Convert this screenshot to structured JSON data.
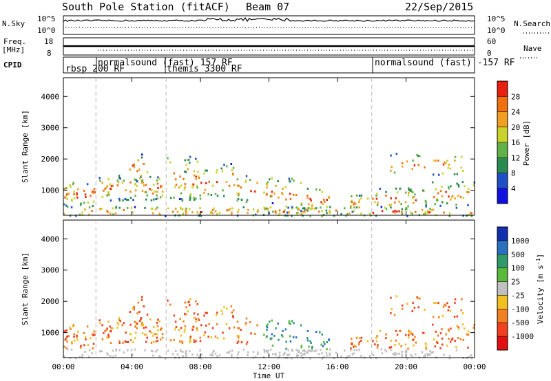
{
  "header": {
    "station": "South Pole Station (fitACF)",
    "beam": "Beam 07",
    "date": "22/Sep/2015"
  },
  "panel_labels": {
    "n_sky": "N.Sky",
    "n_search": "N.Search",
    "freq_line1": "Freq.",
    "freq_line2": "[MHz]",
    "nave": "Nave",
    "cpid": "CPID"
  },
  "chart_data": [
    {
      "type": "line",
      "name": "noise",
      "y_ticks_left": [
        "10^5",
        "10^0"
      ],
      "y_ticks_right": [
        "10^5",
        "10^0"
      ],
      "scale": "log"
    },
    {
      "type": "line",
      "name": "frequency-nave",
      "y_ticks_left": [
        "18",
        "8"
      ],
      "y_ticks_right": [
        "60",
        "0"
      ]
    },
    {
      "type": "table",
      "name": "cpid",
      "modes": [
        {
          "label": "rbsp 200 RF",
          "start_hour": 0.0
        },
        {
          "label": "normalsound (fast) 157 RF",
          "start_hour": 1.9
        },
        {
          "label": "themis 3300 RF",
          "start_hour": 6.0
        },
        {
          "label": "normalsound (fast) -157 RF",
          "start_hour": 18.0
        }
      ],
      "boundaries_hours": [
        1.9,
        6.0,
        18.0
      ]
    },
    {
      "type": "heatmap",
      "name": "power",
      "ylabel": "Slant Range [km]",
      "y_ticks": [
        "1000",
        "2000",
        "3000",
        "4000"
      ],
      "y_tick_values": [
        1000,
        2000,
        3000,
        4000
      ],
      "ylim": [
        200,
        4600
      ],
      "xlim_hours": [
        0,
        24
      ],
      "colorbar_label": "Power [dB]",
      "colorbar_ticks": [
        "4",
        "8",
        "12",
        "16",
        "20",
        "24",
        "28"
      ],
      "colorbar_colors": [
        "#1010e0",
        "#2050c8",
        "#2a8a50",
        "#62b048",
        "#c8d22a",
        "#f0a020",
        "#f07010",
        "#e82010"
      ]
    },
    {
      "type": "heatmap",
      "name": "velocity",
      "ylabel": "Slant Range [km]",
      "y_ticks": [
        "1000",
        "2000",
        "3000",
        "4000"
      ],
      "y_tick_values": [
        1000,
        2000,
        3000,
        4000
      ],
      "ylim": [
        200,
        4600
      ],
      "xlim_hours": [
        0,
        24
      ],
      "colorbar_label": "Velocity [m s^-1]",
      "colorbar_ticks": [
        "1000",
        "500",
        "100",
        "25",
        "-25",
        "-100",
        "-500",
        "-1000"
      ],
      "colorbar_colors": [
        "#1030b0",
        "#2a70c0",
        "#2f9a6a",
        "#5ab83a",
        "#c0c0c0",
        "#f0c020",
        "#f08020",
        "#f04020",
        "#e01010"
      ]
    }
  ],
  "xaxis": {
    "label": "Time UT",
    "ticks": [
      "00:00",
      "04:00",
      "08:00",
      "12:00",
      "16:00",
      "20:00",
      "00:00"
    ],
    "tick_hours": [
      0,
      4,
      8,
      12,
      16,
      20,
      24
    ]
  }
}
